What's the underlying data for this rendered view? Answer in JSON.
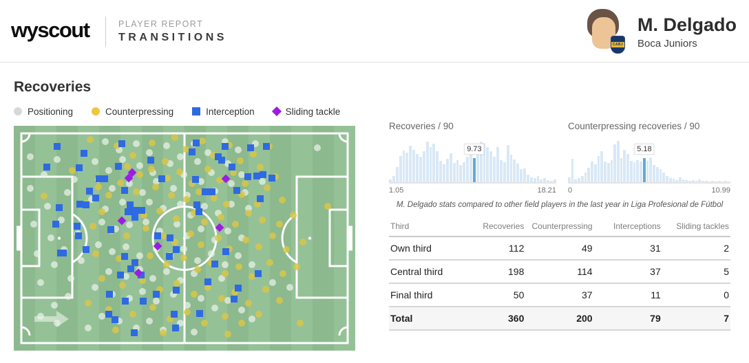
{
  "header": {
    "logo": "wyscout",
    "kicker": "PLAYER REPORT",
    "title": "TRANSITIONS",
    "player": {
      "name": "M. Delgado",
      "team": "Boca Juniors",
      "crest_text": "CABJ"
    }
  },
  "section": {
    "title": "Recoveries",
    "legend": [
      {
        "type": "positioning",
        "label": "Positioning",
        "shape": "circle",
        "color": "#d8d8d8"
      },
      {
        "type": "counterpressing",
        "label": "Counterpressing",
        "shape": "circle",
        "color": "#edc73e"
      },
      {
        "type": "interception",
        "label": "Interception",
        "shape": "square",
        "color": "#2e6ae2"
      },
      {
        "type": "sliding_tackle",
        "label": "Sliding tackle",
        "shape": "diamond",
        "color": "#9c1ce2"
      }
    ]
  },
  "caption": "M. Delgado stats compared to other field players in the last year in Liga Profesional de Fútbol",
  "chart_data": [
    {
      "type": "bar",
      "title": "Recoveries / 90",
      "min_label": "1.05",
      "max_label": "18.21",
      "xlim": [
        1.05,
        18.21
      ],
      "highlight_value": 9.73,
      "highlight_label": "9.73",
      "highlight_index": 25,
      "bars": [
        0.07,
        0.15,
        0.35,
        0.62,
        0.74,
        0.7,
        0.86,
        0.76,
        0.66,
        0.6,
        0.73,
        0.95,
        0.83,
        0.9,
        0.72,
        0.5,
        0.42,
        0.55,
        0.68,
        0.45,
        0.52,
        0.4,
        0.46,
        0.6,
        0.88,
        0.56,
        0.9,
        0.95,
        0.92,
        0.82,
        0.73,
        0.6,
        0.83,
        0.52,
        0.46,
        0.87,
        0.64,
        0.54,
        0.44,
        0.3,
        0.33,
        0.18,
        0.12,
        0.1,
        0.15,
        0.07,
        0.09,
        0.05,
        0.04,
        0.06
      ]
    },
    {
      "type": "bar",
      "title": "Counterpressing recoveries / 90",
      "min_label": "0",
      "max_label": "10.99",
      "xlim": [
        0,
        10.99
      ],
      "highlight_value": 5.18,
      "highlight_label": "5.18",
      "highlight_index": 23,
      "bars": [
        0.12,
        0.55,
        0.07,
        0.1,
        0.14,
        0.22,
        0.34,
        0.48,
        0.42,
        0.62,
        0.72,
        0.48,
        0.45,
        0.52,
        0.88,
        0.96,
        0.56,
        0.76,
        0.66,
        0.5,
        0.46,
        0.52,
        0.48,
        0.56,
        0.5,
        0.58,
        0.4,
        0.36,
        0.3,
        0.22,
        0.15,
        0.1,
        0.08,
        0.05,
        0.11,
        0.06,
        0.05,
        0.04,
        0.05,
        0.03,
        0.06,
        0.04,
        0.03,
        0.02,
        0.03,
        0.02,
        0.04,
        0.02,
        0.03,
        0.02
      ]
    }
  ],
  "table": {
    "headers": [
      "Third",
      "Recoveries",
      "Counterpressing",
      "Interceptions",
      "Sliding tackles"
    ],
    "rows": [
      [
        "Own third",
        "112",
        "49",
        "31",
        "2"
      ],
      [
        "Central third",
        "198",
        "114",
        "37",
        "5"
      ],
      [
        "Final third",
        "50",
        "37",
        "11",
        "0"
      ]
    ],
    "total": [
      "Total",
      "360",
      "200",
      "79",
      "7"
    ]
  },
  "pitch": {
    "markers": {
      "positioning": [
        [
          4.8,
          27.8
        ],
        [
          5.9,
          43.8
        ],
        [
          6.8,
          56.9
        ],
        [
          7.8,
          69.8
        ],
        [
          9.8,
          35.8
        ],
        [
          10.9,
          49.8
        ],
        [
          11.8,
          61.9
        ],
        [
          8.9,
          21.8
        ],
        [
          12.8,
          14.9
        ],
        [
          13.9,
          41.8
        ],
        [
          14.8,
          54.9
        ],
        [
          15.8,
          29.8
        ],
        [
          16.8,
          67.9
        ],
        [
          17.8,
          23.8
        ],
        [
          18.8,
          47.9
        ],
        [
          19.8,
          59.8
        ],
        [
          15.9,
          75.8
        ],
        [
          11.8,
          79.9
        ],
        [
          7.8,
          84.8
        ],
        [
          26.8,
          6.9
        ],
        [
          30.9,
          10.8
        ],
        [
          35.8,
          7.9
        ],
        [
          39.8,
          11.8
        ],
        [
          44.8,
          8.9
        ],
        [
          48.8,
          13.8
        ],
        [
          52.8,
          7.9
        ],
        [
          56.8,
          11.8
        ],
        [
          61.8,
          6.9
        ],
        [
          65.8,
          10.8
        ],
        [
          70.8,
          7.9
        ],
        [
          23.8,
          15.8
        ],
        [
          27.8,
          19.8
        ],
        [
          31.8,
          14.9
        ],
        [
          36.8,
          17.8
        ],
        [
          40.8,
          20.9
        ],
        [
          45.8,
          16.8
        ],
        [
          49.8,
          21.8
        ],
        [
          53.8,
          15.9
        ],
        [
          57.8,
          20.8
        ],
        [
          62.8,
          16.9
        ],
        [
          66.8,
          21.8
        ],
        [
          24.8,
          23.8
        ],
        [
          28.8,
          27.9
        ],
        [
          33.8,
          25.8
        ],
        [
          37.8,
          29.8
        ],
        [
          41.8,
          24.9
        ],
        [
          46.8,
          27.8
        ],
        [
          50.8,
          30.9
        ],
        [
          54.8,
          24.8
        ],
        [
          58.8,
          28.9
        ],
        [
          63.8,
          25.8
        ],
        [
          67.8,
          29.8
        ],
        [
          72.8,
          24.9
        ],
        [
          22.8,
          32.8
        ],
        [
          26.8,
          36.9
        ],
        [
          31.8,
          33.8
        ],
        [
          35.8,
          37.8
        ],
        [
          39.8,
          33.9
        ],
        [
          43.8,
          36.8
        ],
        [
          48.8,
          34.9
        ],
        [
          51.8,
          39.8
        ],
        [
          55.8,
          35.9
        ],
        [
          59.8,
          38.8
        ],
        [
          63.8,
          34.9
        ],
        [
          68.8,
          36.8
        ],
        [
          25.8,
          42.9
        ],
        [
          29.8,
          45.8
        ],
        [
          33.8,
          43.9
        ],
        [
          38.8,
          42.8
        ],
        [
          42.8,
          46.9
        ],
        [
          47.8,
          43.8
        ],
        [
          50.8,
          48.9
        ],
        [
          54.8,
          45.8
        ],
        [
          58.8,
          50.9
        ],
        [
          62.8,
          46.8
        ],
        [
          66.8,
          49.9
        ],
        [
          24.8,
          52.8
        ],
        [
          28.8,
          55.9
        ],
        [
          32.8,
          53.8
        ],
        [
          36.8,
          57.9
        ],
        [
          41.8,
          54.8
        ],
        [
          45.8,
          57.9
        ],
        [
          49.8,
          54.8
        ],
        [
          53.8,
          59.9
        ],
        [
          57.8,
          56.8
        ],
        [
          61.8,
          61.9
        ],
        [
          65.8,
          57.8
        ],
        [
          69.8,
          61.9
        ],
        [
          27.8,
          64.8
        ],
        [
          32.8,
          66.9
        ],
        [
          36.8,
          63.8
        ],
        [
          40.8,
          67.9
        ],
        [
          44.8,
          64.8
        ],
        [
          48.8,
          68.9
        ],
        [
          52.8,
          65.8
        ],
        [
          56.8,
          69.9
        ],
        [
          60.8,
          67.8
        ],
        [
          23.8,
          71.9
        ],
        [
          28.8,
          74.8
        ],
        [
          33.8,
          76.9
        ],
        [
          37.8,
          73.8
        ],
        [
          41.8,
          77.9
        ],
        [
          46.8,
          74.8
        ],
        [
          50.8,
          79.9
        ],
        [
          54.8,
          76.8
        ],
        [
          58.8,
          80.9
        ],
        [
          62.8,
          77.8
        ],
        [
          66.8,
          81.9
        ],
        [
          25.8,
          84.8
        ],
        [
          30.8,
          86.9
        ],
        [
          35.8,
          89.8
        ],
        [
          39.8,
          86.9
        ],
        [
          43.8,
          90.8
        ],
        [
          48.8,
          87.9
        ],
        [
          52.8,
          91.8
        ],
        [
          21.8,
          89.9
        ],
        [
          12.8,
          87.8
        ],
        [
          69.8,
          85.9
        ],
        [
          75.8,
          69.8
        ],
        [
          80.8,
          71.9
        ],
        [
          4.9,
          13.8
        ],
        [
          88.9,
          9.9
        ]
      ],
      "counterpressing": [
        [
          22.4,
          6.1
        ],
        [
          30.2,
          8.8
        ],
        [
          34.8,
          13.2
        ],
        [
          40.6,
          7.7
        ],
        [
          44.3,
          15.8
        ],
        [
          47.1,
          5.2
        ],
        [
          50.4,
          10.3
        ],
        [
          55.2,
          6.8
        ],
        [
          58.4,
          13.1
        ],
        [
          63.1,
          8.6
        ],
        [
          66.3,
          15.7
        ],
        [
          70.2,
          12.4
        ],
        [
          74.8,
          9.1
        ],
        [
          33.2,
          17.9
        ],
        [
          36.9,
          21.8
        ],
        [
          40.3,
          19.2
        ],
        [
          44.9,
          23.1
        ],
        [
          48.6,
          20.4
        ],
        [
          52.3,
          25.7
        ],
        [
          56.8,
          19.3
        ],
        [
          60.2,
          24.2
        ],
        [
          64.4,
          20.9
        ],
        [
          67.8,
          25.8
        ],
        [
          72.1,
          18.4
        ],
        [
          76.6,
          22.7
        ],
        [
          24.7,
          27.2
        ],
        [
          27.9,
          30.8
        ],
        [
          31.2,
          25.3
        ],
        [
          35.8,
          29.4
        ],
        [
          41.6,
          27.1
        ],
        [
          46.2,
          30.9
        ],
        [
          50.7,
          32.8
        ],
        [
          54.2,
          29.3
        ],
        [
          58.7,
          32.1
        ],
        [
          62.3,
          34.9
        ],
        [
          66.8,
          30.6
        ],
        [
          71.3,
          34.8
        ],
        [
          74.2,
          27.6
        ],
        [
          78.6,
          32.9
        ],
        [
          21.3,
          34.7
        ],
        [
          25.8,
          38.2
        ],
        [
          33.6,
          36.1
        ],
        [
          38.2,
          39.8
        ],
        [
          42.8,
          37.9
        ],
        [
          47.6,
          41.2
        ],
        [
          52.9,
          38.8
        ],
        [
          55.8,
          42.7
        ],
        [
          60.7,
          40.8
        ],
        [
          64.9,
          43.6
        ],
        [
          68.7,
          38.9
        ],
        [
          72.8,
          41.8
        ],
        [
          77.9,
          43.7
        ],
        [
          81.8,
          39.9
        ],
        [
          23.2,
          44.8
        ],
        [
          28.7,
          46.9
        ],
        [
          33.1,
          48.8
        ],
        [
          38.8,
          45.7
        ],
        [
          43.8,
          48.9
        ],
        [
          47.2,
          51.8
        ],
        [
          51.8,
          47.9
        ],
        [
          54.9,
          52.8
        ],
        [
          59.8,
          49.7
        ],
        [
          63.2,
          54.8
        ],
        [
          67.9,
          50.9
        ],
        [
          71.8,
          53.8
        ],
        [
          75.9,
          48.8
        ],
        [
          79.8,
          54.9
        ],
        [
          84.7,
          51.8
        ],
        [
          23.9,
          56.8
        ],
        [
          30.8,
          58.9
        ],
        [
          35.9,
          60.8
        ],
        [
          39.9,
          57.8
        ],
        [
          44.8,
          61.9
        ],
        [
          49.8,
          58.8
        ],
        [
          53.9,
          63.8
        ],
        [
          57.8,
          60.9
        ],
        [
          61.8,
          65.8
        ],
        [
          65.9,
          62.8
        ],
        [
          69.8,
          66.9
        ],
        [
          74.9,
          60.8
        ],
        [
          78.8,
          65.9
        ],
        [
          82.8,
          62.8
        ],
        [
          25.8,
          67.9
        ],
        [
          31.8,
          70.8
        ],
        [
          37.8,
          68.9
        ],
        [
          42.8,
          72.8
        ],
        [
          47.8,
          69.9
        ],
        [
          52.8,
          74.8
        ],
        [
          56.8,
          71.9
        ],
        [
          60.8,
          76.8
        ],
        [
          64.8,
          73.9
        ],
        [
          68.8,
          78.8
        ],
        [
          73.8,
          72.9
        ],
        [
          77.8,
          77.8
        ],
        [
          21.8,
          78.9
        ],
        [
          27.8,
          81.8
        ],
        [
          34.8,
          83.9
        ],
        [
          40.8,
          80.8
        ],
        [
          45.8,
          85.9
        ],
        [
          50.8,
          82.8
        ],
        [
          55.8,
          87.9
        ],
        [
          61.8,
          84.8
        ],
        [
          66.8,
          87.9
        ],
        [
          71.8,
          83.8
        ],
        [
          83.8,
          87.9
        ],
        [
          62.8,
          92.8
        ],
        [
          43.8,
          91.9
        ],
        [
          29.8,
          90.8
        ],
        [
          17.2,
          19.8
        ],
        [
          8.9,
          31.2
        ],
        [
          91.9,
          35.8
        ]
      ],
      "interception": [
        [
          12.7,
          9.2
        ],
        [
          20.5,
          12.2
        ],
        [
          9.7,
          18.3
        ],
        [
          19.1,
          18.7
        ],
        [
          25.0,
          23.5
        ],
        [
          26.6,
          23.5
        ],
        [
          30.6,
          18.0
        ],
        [
          31.7,
          7.9
        ],
        [
          40.1,
          15.3
        ],
        [
          43.3,
          23.5
        ],
        [
          22.2,
          29.1
        ],
        [
          24.0,
          32.1
        ],
        [
          19.3,
          34.9
        ],
        [
          21.2,
          35.2
        ],
        [
          32.4,
          28.7
        ],
        [
          34.1,
          35.2
        ],
        [
          35.5,
          37.6
        ],
        [
          37.5,
          37.6
        ],
        [
          28.4,
          46.2
        ],
        [
          33.5,
          38.2
        ],
        [
          35.5,
          40.7
        ],
        [
          13.3,
          36.4
        ],
        [
          12.3,
          43.7
        ],
        [
          18.5,
          44.6
        ],
        [
          18.9,
          48.9
        ],
        [
          13.7,
          56.6
        ],
        [
          14.5,
          56.6
        ],
        [
          21.2,
          55.0
        ],
        [
          42.1,
          48.9
        ],
        [
          45.8,
          49.8
        ],
        [
          47.6,
          55.0
        ],
        [
          45.6,
          58.1
        ],
        [
          32.4,
          58.1
        ],
        [
          35.5,
          60.8
        ],
        [
          34.3,
          63.6
        ],
        [
          31.3,
          66.4
        ],
        [
          37.3,
          66.4
        ],
        [
          28.0,
          74.9
        ],
        [
          32.7,
          78.0
        ],
        [
          37.9,
          78.0
        ],
        [
          41.7,
          74.9
        ],
        [
          47.6,
          73.1
        ],
        [
          27.8,
          83.8
        ],
        [
          29.6,
          86.2
        ],
        [
          35.3,
          92.0
        ],
        [
          47.0,
          83.8
        ],
        [
          47.4,
          89.9
        ],
        [
          53.4,
          7.6
        ],
        [
          52.2,
          11.6
        ],
        [
          61.9,
          9.2
        ],
        [
          59.9,
          13.8
        ],
        [
          60.9,
          15.3
        ],
        [
          69.4,
          9.8
        ],
        [
          74.0,
          9.2
        ],
        [
          63.9,
          18.3
        ],
        [
          53.2,
          23.9
        ],
        [
          68.5,
          22.6
        ],
        [
          71.2,
          22.3
        ],
        [
          73.0,
          21.7
        ],
        [
          75.6,
          23.2
        ],
        [
          56.0,
          29.4
        ],
        [
          58.1,
          29.4
        ],
        [
          65.3,
          28.7
        ],
        [
          72.2,
          32.4
        ],
        [
          53.6,
          35.2
        ],
        [
          54.2,
          38.2
        ],
        [
          58.9,
          61.5
        ],
        [
          56.9,
          69.4
        ],
        [
          65.7,
          72.2
        ],
        [
          64.5,
          77.1
        ],
        [
          71.6,
          65.7
        ],
        [
          54.4,
          83.5
        ],
        [
          62.0,
          55.9
        ]
      ],
      "sliding_tackle": [
        [
          34.7,
          20.8
        ],
        [
          33.7,
          23.2
        ],
        [
          31.7,
          42.2
        ],
        [
          42.1,
          53.5
        ],
        [
          36.5,
          65.4
        ],
        [
          62.1,
          23.5
        ],
        [
          60.3,
          45.3
        ]
      ]
    }
  }
}
